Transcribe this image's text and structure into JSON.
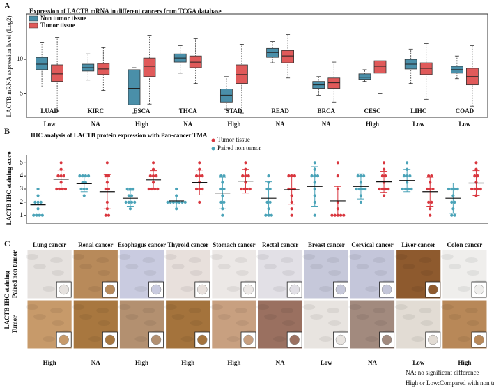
{
  "panel_labels": [
    "A",
    "B",
    "C"
  ],
  "chart_data": [
    {
      "type": "box",
      "title": "Expression of LACTB mRNA in different cancers from TCGA database",
      "y_label": "LACTB mRNA expression level (Log2)",
      "categories": [
        "LUAD",
        "KIRC",
        "ESCA",
        "THCA",
        "STAD",
        "READ",
        "BRCA",
        "CESC",
        "LIHC",
        "COAD"
      ],
      "significance": [
        "Low",
        "NA",
        "High",
        "NA",
        "High",
        "NA",
        "NA",
        "High",
        "Low",
        "Low"
      ],
      "ylim": [
        1.6,
        16.6
      ],
      "yticks": [
        5,
        10
      ],
      "series": [
        {
          "name": "Non tumor tissue",
          "color": "#4a8fa9",
          "values": [
            {
              "min": 6,
              "q1": 8.5,
              "median": 9.3,
              "q3": 10.3,
              "max": 12.5
            },
            {
              "min": 7,
              "q1": 8.3,
              "median": 8.8,
              "q3": 9.3,
              "max": 10.8
            },
            {
              "min": 2.2,
              "q1": 3.4,
              "median": 5.8,
              "q3": 8.5,
              "max": 8.8
            },
            {
              "min": 8,
              "q1": 9.6,
              "median": 10.2,
              "q3": 10.8,
              "max": 12
            },
            {
              "min": 2.8,
              "q1": 3.8,
              "median": 4.8,
              "q3": 5.7,
              "max": 7.5
            },
            {
              "min": 9.5,
              "q1": 10.3,
              "median": 11,
              "q3": 11.6,
              "max": 12.6
            },
            {
              "min": 4.8,
              "q1": 5.8,
              "median": 6.3,
              "q3": 6.8,
              "max": 7.5
            },
            {
              "min": 6.8,
              "q1": 7.1,
              "median": 7.4,
              "q3": 7.9,
              "max": 8.5
            },
            {
              "min": 6.5,
              "q1": 8.6,
              "median": 9.3,
              "q3": 10,
              "max": 11.5
            },
            {
              "min": 7.2,
              "q1": 8,
              "median": 8.5,
              "q3": 9,
              "max": 10.5
            }
          ]
        },
        {
          "name": "Tumor tissue",
          "color": "#e05a5a",
          "values": [
            {
              "min": 2.5,
              "q1": 6.8,
              "median": 7.9,
              "q3": 9.2,
              "max": 13.2
            },
            {
              "min": 5.5,
              "q1": 7.8,
              "median": 8.6,
              "q3": 9.4,
              "max": 11.7
            },
            {
              "min": 3.5,
              "q1": 7.5,
              "median": 9,
              "q3": 10.2,
              "max": 13.5
            },
            {
              "min": 6.5,
              "q1": 8.8,
              "median": 9.6,
              "q3": 10.5,
              "max": 13
            },
            {
              "min": 2.2,
              "q1": 6.5,
              "median": 7.8,
              "q3": 9.2,
              "max": 12.2
            },
            {
              "min": 7.3,
              "q1": 9.5,
              "median": 10.5,
              "q3": 11.3,
              "max": 13.6
            },
            {
              "min": 3.8,
              "q1": 5.8,
              "median": 6.6,
              "q3": 7.3,
              "max": 9.6
            },
            {
              "min": 5,
              "q1": 8,
              "median": 9,
              "q3": 9.8,
              "max": 12.8
            },
            {
              "min": 4.2,
              "q1": 7.8,
              "median": 8.7,
              "q3": 9.5,
              "max": 12.3
            },
            {
              "min": 3.2,
              "q1": 6.3,
              "median": 7.5,
              "q3": 8.7,
              "max": 12
            }
          ]
        }
      ]
    },
    {
      "type": "dot",
      "title": "IHC analysis of LACTB protein expression with Pan-cancer TMA",
      "y_label": "LACTB IHC staining score",
      "ylim": [
        0.4,
        5.6
      ],
      "yticks": [
        1,
        2,
        3,
        4,
        5
      ],
      "series": [
        {
          "name": "Tumor tissue",
          "color": "#d9363e",
          "values": [
            3.75,
            2.8,
            3.7,
            3.5,
            3.6,
            2.95,
            2.1,
            3.55,
            2.8,
            3.45
          ],
          "errors": [
            0.7,
            1.3,
            0.7,
            0.95,
            0.9,
            1.1,
            1.1,
            0.8,
            1.1,
            0.95
          ],
          "points": [
            [
              3,
              3,
              3,
              3,
              3.5,
              4,
              4,
              4,
              4.5,
              5
            ],
            [
              1,
              1,
              1.5,
              2,
              3,
              3,
              3.5,
              4,
              4,
              5
            ],
            [
              3,
              3,
              3,
              3,
              3.5,
              4,
              4,
              4,
              4.5,
              5
            ],
            [
              2,
              3,
              3,
              3,
              3.5,
              4,
              4,
              4,
              4.5,
              5
            ],
            [
              3,
              3,
              3,
              3,
              3.5,
              4,
              4,
              4,
              4.5,
              5
            ],
            [
              1,
              1.5,
              2,
              2.5,
              3,
              3,
              3,
              4,
              4,
              4
            ],
            [
              1,
              1,
              1,
              1,
              1,
              1.5,
              2,
              3,
              4,
              5
            ],
            [
              2.5,
              3,
              3,
              3,
              3,
              3.5,
              4,
              4,
              4.5,
              5
            ],
            [
              1,
              1.5,
              2,
              2,
              3,
              3,
              3,
              3.5,
              4,
              4
            ],
            [
              2.5,
              3,
              3,
              3,
              3,
              3.5,
              4,
              4,
              4.5,
              5
            ]
          ]
        },
        {
          "name": "Paired non tumor",
          "color": "#4aa3b8",
          "values": [
            1.8,
            3.4,
            2.3,
            2.1,
            2.7,
            2.3,
            3.2,
            3.2,
            3.65,
            2.3
          ],
          "errors": [
            0.75,
            0.6,
            0.6,
            0.45,
            1.2,
            1.25,
            1.5,
            0.95,
            0.85,
            1.15
          ],
          "points": [
            [
              1,
              1,
              1,
              1,
              1.5,
              2,
              2,
              2,
              2.5,
              3
            ],
            [
              2.5,
              3,
              3,
              3,
              3.5,
              3.5,
              4,
              4,
              4,
              4
            ],
            [
              1.5,
              2,
              2,
              2,
              2,
              2.5,
              2.5,
              3,
              3,
              3
            ],
            [
              1.5,
              2,
              2,
              2,
              2,
              2,
              2,
              2,
              2.5,
              3
            ],
            [
              1,
              1.5,
              2,
              2,
              2.5,
              3,
              3,
              3.5,
              4,
              4
            ],
            [
              1,
              1,
              1,
              1.5,
              2,
              2,
              3,
              3,
              3.5,
              4
            ],
            [
              1,
              2,
              2.5,
              3,
              3.5,
              4,
              4,
              4,
              4.5,
              5
            ],
            [
              2,
              2.5,
              3,
              3,
              3,
              3,
              3.5,
              4,
              4,
              4
            ],
            [
              3,
              3,
              3,
              3,
              3.5,
              4,
              4,
              4,
              4.5,
              5
            ],
            [
              1,
              1,
              1.5,
              2,
              2,
              2.5,
              3,
              3,
              3,
              3
            ]
          ]
        }
      ]
    }
  ],
  "ihc": {
    "row_title": "LACTB IHC staining",
    "rows": [
      "Paired non tumor",
      "Tumor"
    ],
    "columns": [
      "Lung cancer",
      "Renal cancer",
      "Esophagus cancer",
      "Thyroid cancer",
      "Stomach cancer",
      "Rectal cancer",
      "Breast cancer",
      "Cervical cancer",
      "Liver cancer",
      "Colon cancer"
    ],
    "results": [
      "High",
      "NA",
      "High",
      "High",
      "High",
      "NA",
      "Low",
      "NA",
      "Low",
      "High"
    ],
    "notes": [
      "NA: no significant difference",
      "High or Low:Compared with non tumor"
    ]
  }
}
